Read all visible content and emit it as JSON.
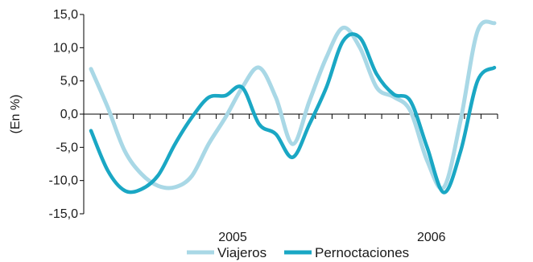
{
  "chart_data": {
    "type": "line",
    "title": "",
    "xlabel": "",
    "ylabel": "(En %)",
    "ylim": [
      -15,
      15
    ],
    "yticks": [
      "15,0",
      "10,0",
      "5,0",
      "0,0",
      "-5,0",
      "-10,0",
      "-15,0"
    ],
    "ytick_values": [
      15,
      10,
      5,
      0,
      -5,
      -10,
      -15
    ],
    "xlim": [
      0,
      25
    ],
    "x_tick_labels": [
      {
        "label": "2005",
        "x": 9
      },
      {
        "label": "2006",
        "x": 21
      }
    ],
    "grid": false,
    "legend_position": "bottom",
    "series": [
      {
        "name": "Viajeros",
        "color": "#a9d8e6",
        "values": [
          6.8,
          1.0,
          -5.5,
          -9.0,
          -10.8,
          -11.0,
          -9.3,
          -4.5,
          -0.5,
          4.0,
          7.0,
          2.5,
          -4.5,
          2.0,
          8.5,
          13.0,
          10.0,
          4.0,
          2.6,
          0.5,
          -7.0,
          -11.0,
          -0.8,
          12.5,
          13.7
        ]
      },
      {
        "name": "Pernoctaciones",
        "color": "#1aa7c4",
        "values": [
          -2.5,
          -8.5,
          -11.5,
          -11.3,
          -9.2,
          -4.5,
          -0.5,
          2.5,
          2.8,
          4.0,
          -1.5,
          -3.0,
          -6.5,
          -1.5,
          4.0,
          11.0,
          11.5,
          6.0,
          3.0,
          2.0,
          -5.0,
          -11.8,
          -5.5,
          5.0,
          7.0
        ]
      }
    ]
  }
}
